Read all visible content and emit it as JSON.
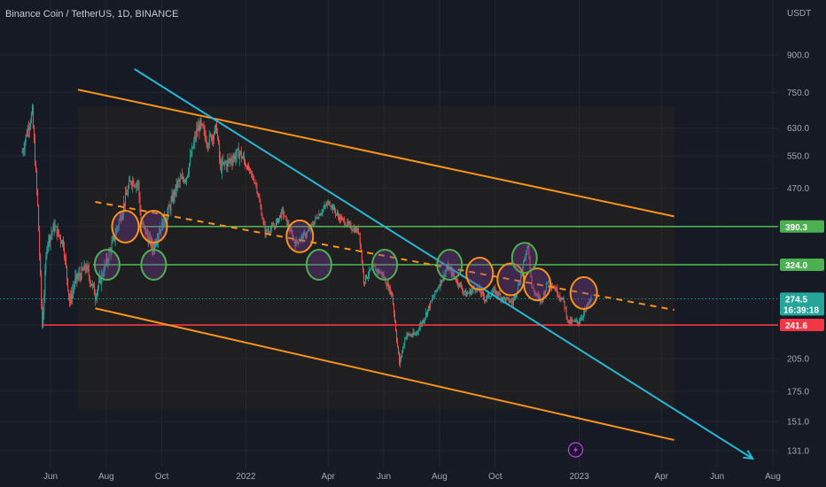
{
  "header": {
    "symbol": "Binance Coin / TetherUS, 1D, BINANCE",
    "currency": "USDT"
  },
  "colors": {
    "background": "#161a25",
    "up": "#26a69a",
    "down": "#ef5350",
    "channel": "#f7931a",
    "trendline": "#29b6d6",
    "support_green": "#4caf50",
    "support_red": "#f23645"
  },
  "chart_data": {
    "type": "candlestick",
    "title": "Binance Coin / TetherUS, 1D, BINANCE",
    "y_scale": "log",
    "ylabel": "USDT",
    "y_ticks": [
      900.0,
      750.0,
      630.0,
      550.0,
      470.0,
      390.3,
      324.0,
      274.5,
      241.6,
      205.0,
      175.0,
      151.0,
      131.0
    ],
    "x_ticks": [
      "Jun",
      "Aug",
      "Oct",
      "2022",
      "Apr",
      "Jun",
      "Aug",
      "Oct",
      "2023",
      "Apr",
      "Jun",
      "Aug"
    ],
    "x_tick_dates": [
      "2021-06-01",
      "2021-08-01",
      "2021-10-01",
      "2022-01-01",
      "2022-04-01",
      "2022-06-01",
      "2022-08-01",
      "2022-10-01",
      "2023-01-01",
      "2023-04-01",
      "2023-06-01",
      "2023-08-01"
    ],
    "horizontal_levels": [
      {
        "label": "390.3",
        "value": 390.3,
        "color": "#4caf50"
      },
      {
        "label": "324.0",
        "value": 324.0,
        "color": "#4caf50"
      },
      {
        "label": "241.6",
        "value": 241.6,
        "color": "#f23645"
      }
    ],
    "last_price": {
      "label": "274.5",
      "value": 274.5,
      "countdown": "16:39:18"
    },
    "price_path": [
      [
        "2021-05-01",
        560
      ],
      [
        "2021-05-08",
        640
      ],
      [
        "2021-05-12",
        680
      ],
      [
        "2021-05-18",
        430
      ],
      [
        "2021-05-23",
        240
      ],
      [
        "2021-05-28",
        360
      ],
      [
        "2021-06-05",
        390
      ],
      [
        "2021-06-15",
        360
      ],
      [
        "2021-06-22",
        270
      ],
      [
        "2021-06-28",
        300
      ],
      [
        "2021-07-10",
        320
      ],
      [
        "2021-07-20",
        280
      ],
      [
        "2021-07-28",
        310
      ],
      [
        "2021-08-08",
        360
      ],
      [
        "2021-08-18",
        420
      ],
      [
        "2021-08-28",
        490
      ],
      [
        "2021-09-05",
        480
      ],
      [
        "2021-09-08",
        400
      ],
      [
        "2021-09-21",
        350
      ],
      [
        "2021-09-27",
        380
      ],
      [
        "2021-10-08",
        420
      ],
      [
        "2021-10-18",
        480
      ],
      [
        "2021-10-28",
        500
      ],
      [
        "2021-11-08",
        620
      ],
      [
        "2021-11-12",
        640
      ],
      [
        "2021-11-20",
        590
      ],
      [
        "2021-11-30",
        630
      ],
      [
        "2021-12-04",
        520
      ],
      [
        "2021-12-15",
        540
      ],
      [
        "2021-12-25",
        560
      ],
      [
        "2022-01-05",
        510
      ],
      [
        "2022-01-12",
        480
      ],
      [
        "2022-01-22",
        380
      ],
      [
        "2022-02-01",
        390
      ],
      [
        "2022-02-10",
        420
      ],
      [
        "2022-02-24",
        360
      ],
      [
        "2022-03-10",
        380
      ],
      [
        "2022-03-20",
        410
      ],
      [
        "2022-04-02",
        440
      ],
      [
        "2022-04-12",
        410
      ],
      [
        "2022-04-25",
        390
      ],
      [
        "2022-05-05",
        380
      ],
      [
        "2022-05-10",
        300
      ],
      [
        "2022-05-20",
        320
      ],
      [
        "2022-05-30",
        310
      ],
      [
        "2022-06-10",
        280
      ],
      [
        "2022-06-18",
        200
      ],
      [
        "2022-06-25",
        230
      ],
      [
        "2022-07-05",
        230
      ],
      [
        "2022-07-15",
        250
      ],
      [
        "2022-07-30",
        290
      ],
      [
        "2022-08-10",
        320
      ],
      [
        "2022-08-20",
        300
      ],
      [
        "2022-08-30",
        280
      ],
      [
        "2022-09-10",
        290
      ],
      [
        "2022-09-20",
        275
      ],
      [
        "2022-09-30",
        285
      ],
      [
        "2022-10-10",
        275
      ],
      [
        "2022-10-20",
        270
      ],
      [
        "2022-10-28",
        300
      ],
      [
        "2022-11-06",
        360
      ],
      [
        "2022-11-10",
        290
      ],
      [
        "2022-11-20",
        270
      ],
      [
        "2022-11-28",
        300
      ],
      [
        "2022-12-05",
        290
      ],
      [
        "2022-12-15",
        270
      ],
      [
        "2022-12-20",
        245
      ],
      [
        "2022-12-31",
        245
      ],
      [
        "2023-01-08",
        260
      ],
      [
        "2023-01-14",
        274.5
      ]
    ],
    "annotations": {
      "orange_circles_dates": [
        "2021-08-22",
        "2021-09-22",
        "2022-03-01",
        "2022-09-14",
        "2022-10-18",
        "2022-11-16",
        "2023-01-06"
      ],
      "green_circles_dates": [
        "2021-08-02",
        "2021-09-22",
        "2022-03-22",
        "2022-06-02",
        "2022-08-12",
        "2022-11-02"
      ],
      "upper_channel": [
        [
          "2021-07-01",
          760
        ],
        [
          "2023-04-15",
          410
        ]
      ],
      "lower_channel": [
        [
          "2021-07-20",
          262
        ],
        [
          "2023-04-15",
          138
        ]
      ],
      "mid_dashed": [
        [
          "2021-07-20",
          440
        ],
        [
          "2023-04-15",
          260
        ]
      ],
      "blue_trendline": [
        [
          "2021-09-01",
          840
        ],
        [
          "2023-07-10",
          126
        ]
      ]
    }
  }
}
